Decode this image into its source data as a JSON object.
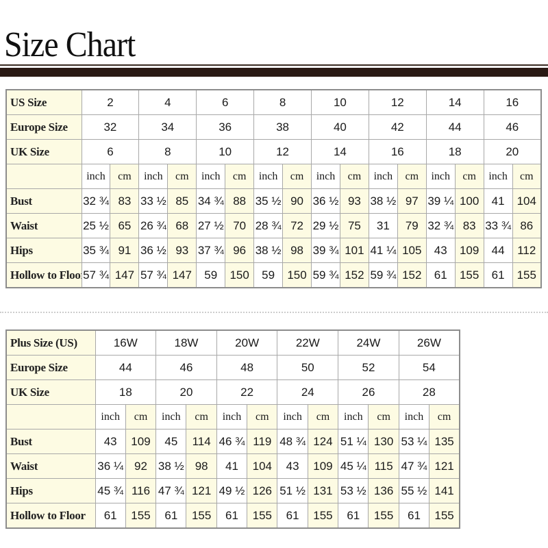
{
  "title": "Size Chart",
  "units": {
    "inch": "inch",
    "cm": "cm"
  },
  "standard": {
    "header_rows": [
      {
        "label": "US Size",
        "values": [
          "2",
          "4",
          "6",
          "8",
          "10",
          "12",
          "14",
          "16"
        ]
      },
      {
        "label": "Europe Size",
        "values": [
          "32",
          "34",
          "36",
          "38",
          "40",
          "42",
          "44",
          "46"
        ]
      },
      {
        "label": "UK Size",
        "values": [
          "6",
          "8",
          "10",
          "12",
          "14",
          "16",
          "18",
          "20"
        ]
      }
    ],
    "measure_rows": [
      {
        "label": "Bust",
        "values": [
          "32 ¾",
          "83",
          "33 ½",
          "85",
          "34 ¾",
          "88",
          "35 ½",
          "90",
          "36 ½",
          "93",
          "38 ½",
          "97",
          "39 ¼",
          "100",
          "41",
          "104"
        ]
      },
      {
        "label": "Waist",
        "values": [
          "25 ½",
          "65",
          "26 ¾",
          "68",
          "27 ½",
          "70",
          "28 ¾",
          "72",
          "29 ½",
          "75",
          "31",
          "79",
          "32 ¾",
          "83",
          "33 ¾",
          "86"
        ]
      },
      {
        "label": "Hips",
        "values": [
          "35 ¾",
          "91",
          "36 ½",
          "93",
          "37 ¾",
          "96",
          "38 ½",
          "98",
          "39 ¾",
          "101",
          "41 ¼",
          "105",
          "43",
          "109",
          "44",
          "112"
        ]
      },
      {
        "label": "Hollow to Floor",
        "values": [
          "57 ¾",
          "147",
          "57 ¾",
          "147",
          "59",
          "150",
          "59",
          "150",
          "59 ¾",
          "152",
          "59 ¾",
          "152",
          "61",
          "155",
          "61",
          "155"
        ]
      }
    ]
  },
  "plus": {
    "header_rows": [
      {
        "label": "Plus Size (US)",
        "values": [
          "16W",
          "18W",
          "20W",
          "22W",
          "24W",
          "26W"
        ]
      },
      {
        "label": "Europe Size",
        "values": [
          "44",
          "46",
          "48",
          "50",
          "52",
          "54"
        ]
      },
      {
        "label": "UK Size",
        "values": [
          "18",
          "20",
          "22",
          "24",
          "26",
          "28"
        ]
      }
    ],
    "measure_rows": [
      {
        "label": "Bust",
        "values": [
          "43",
          "109",
          "45",
          "114",
          "46 ¾",
          "119",
          "48 ¾",
          "124",
          "51 ¼",
          "130",
          "53 ¼",
          "135"
        ]
      },
      {
        "label": "Waist",
        "values": [
          "36 ¼",
          "92",
          "38 ½",
          "98",
          "41",
          "104",
          "43",
          "109",
          "45 ¼",
          "115",
          "47 ¾",
          "121"
        ]
      },
      {
        "label": "Hips",
        "values": [
          "45 ¾",
          "116",
          "47 ¾",
          "121",
          "49 ½",
          "126",
          "51 ½",
          "131",
          "53 ½",
          "136",
          "55 ½",
          "141"
        ]
      },
      {
        "label": "Hollow to Floor",
        "values": [
          "61",
          "155",
          "61",
          "155",
          "61",
          "155",
          "61",
          "155",
          "61",
          "155",
          "61",
          "155"
        ]
      }
    ]
  }
}
